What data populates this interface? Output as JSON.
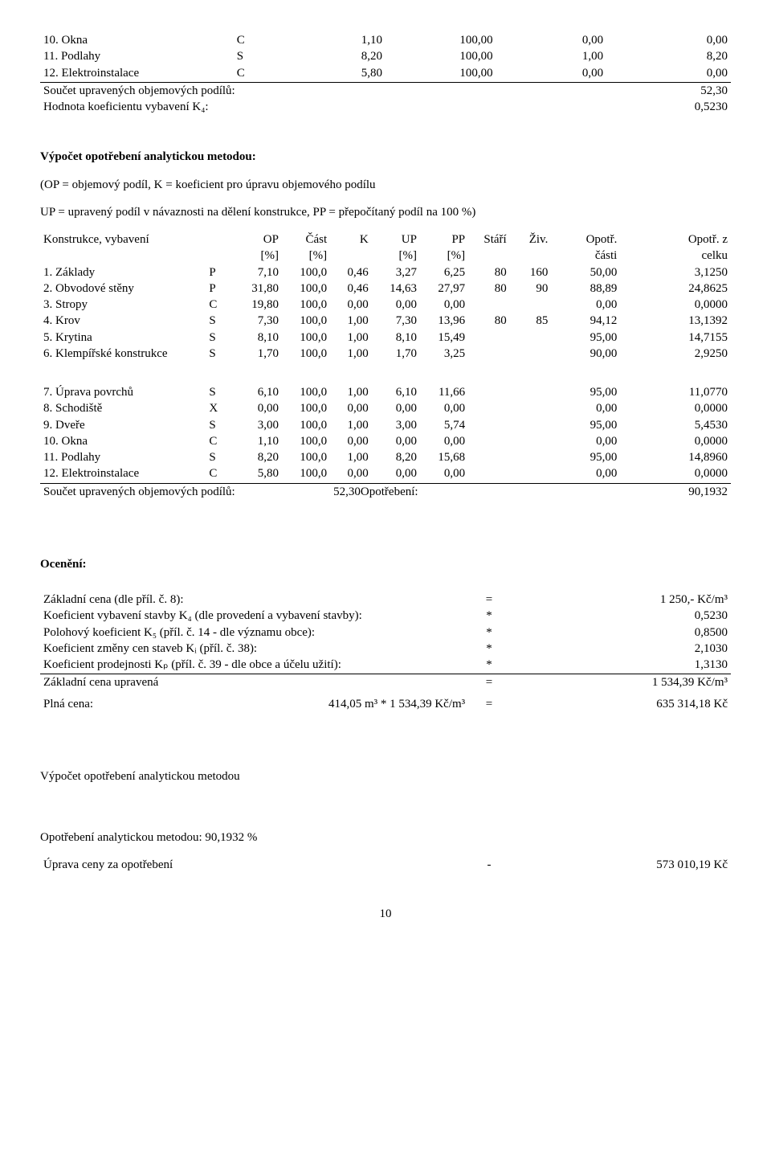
{
  "top_table": {
    "rows": [
      {
        "label": "10. Okna",
        "code": "C",
        "a": "1,10",
        "b": "100,00",
        "c": "0,00",
        "d": "0,00"
      },
      {
        "label": "11. Podlahy",
        "code": "S",
        "a": "8,20",
        "b": "100,00",
        "c": "1,00",
        "d": "8,20"
      },
      {
        "label": "12. Elektroinstalace",
        "code": "C",
        "a": "5,80",
        "b": "100,00",
        "c": "0,00",
        "d": "0,00"
      }
    ],
    "sum_label": "Součet upravených objemových podílů:",
    "sum_value": "52,30",
    "coef_label": "Hodnota koeficientu vybavení K₄:",
    "coef_value": "0,5230"
  },
  "calc_heading": "Výpočet opotřebení analytickou metodou:",
  "op_note": "(OP = objemový podíl, K = koeficient pro úpravu objemového podílu",
  "up_note": "UP = upravený podíl v návaznosti na dělení konstrukce, PP = přepočítaný podíl na 100 %)",
  "main_table": {
    "head1": [
      "Konstrukce, vybavení",
      "",
      "OP",
      "Část",
      "K",
      "UP",
      "PP",
      "Stáří",
      "Živ.",
      "Opotř.",
      "Opotř. z"
    ],
    "head2": [
      "",
      "",
      "[%]",
      "[%]",
      "",
      "[%]",
      "[%]",
      "",
      "",
      "části",
      "celku"
    ],
    "rows1": [
      {
        "label": "1. Základy",
        "code": "P",
        "a": "7,10",
        "b": "100,0",
        "c": "0,46",
        "d": "3,27",
        "e": "6,25",
        "f": "80",
        "g": "160",
        "h": "50,00",
        "i": "3,1250"
      },
      {
        "label": "2. Obvodové stěny",
        "code": "P",
        "a": "31,80",
        "b": "100,0",
        "c": "0,46",
        "d": "14,63",
        "e": "27,97",
        "f": "80",
        "g": "90",
        "h": "88,89",
        "i": "24,8625"
      },
      {
        "label": "3. Stropy",
        "code": "C",
        "a": "19,80",
        "b": "100,0",
        "c": "0,00",
        "d": "0,00",
        "e": "0,00",
        "f": "",
        "g": "",
        "h": "0,00",
        "i": "0,0000"
      },
      {
        "label": "4. Krov",
        "code": "S",
        "a": "7,30",
        "b": "100,0",
        "c": "1,00",
        "d": "7,30",
        "e": "13,96",
        "f": "80",
        "g": "85",
        "h": "94,12",
        "i": "13,1392"
      },
      {
        "label": "5. Krytina",
        "code": "S",
        "a": "8,10",
        "b": "100,0",
        "c": "1,00",
        "d": "8,10",
        "e": "15,49",
        "f": "",
        "g": "",
        "h": "95,00",
        "i": "14,7155"
      },
      {
        "label": "6. Klempířské konstrukce",
        "code": "S",
        "a": "1,70",
        "b": "100,0",
        "c": "1,00",
        "d": "1,70",
        "e": "3,25",
        "f": "",
        "g": "",
        "h": "90,00",
        "i": "2,9250"
      }
    ],
    "rows2": [
      {
        "label": "7. Úprava povrchů",
        "code": "S",
        "a": "6,10",
        "b": "100,0",
        "c": "1,00",
        "d": "6,10",
        "e": "11,66",
        "f": "",
        "g": "",
        "h": "95,00",
        "i": "11,0770"
      },
      {
        "label": "8. Schodiště",
        "code": "X",
        "a": "0,00",
        "b": "100,0",
        "c": "0,00",
        "d": "0,00",
        "e": "0,00",
        "f": "",
        "g": "",
        "h": "0,00",
        "i": "0,0000"
      },
      {
        "label": "9. Dveře",
        "code": "S",
        "a": "3,00",
        "b": "100,0",
        "c": "1,00",
        "d": "3,00",
        "e": "5,74",
        "f": "",
        "g": "",
        "h": "95,00",
        "i": "5,4530"
      },
      {
        "label": "10. Okna",
        "code": "C",
        "a": "1,10",
        "b": "100,0",
        "c": "0,00",
        "d": "0,00",
        "e": "0,00",
        "f": "",
        "g": "",
        "h": "0,00",
        "i": "0,0000"
      },
      {
        "label": "11. Podlahy",
        "code": "S",
        "a": "8,20",
        "b": "100,0",
        "c": "1,00",
        "d": "8,20",
        "e": "15,68",
        "f": "",
        "g": "",
        "h": "95,00",
        "i": "14,8960"
      },
      {
        "label": "12. Elektroinstalace",
        "code": "C",
        "a": "5,80",
        "b": "100,0",
        "c": "0,00",
        "d": "0,00",
        "e": "0,00",
        "f": "",
        "g": "",
        "h": "0,00",
        "i": "0,0000"
      }
    ],
    "sum_label": "Součet upravených objemových podílů:",
    "sum_mid": "52,30",
    "sum_op_label": "Opotřebení:",
    "sum_op_value": "90,1932"
  },
  "ocen_heading": "Ocenění:",
  "ocen_rows": [
    {
      "label": "Základní cena (dle příl. č. 8):",
      "op": "=",
      "val": "1 250,- Kč/m³"
    },
    {
      "label": "Koeficient vybavení stavby K₄ (dle provedení a vybavení stavby):",
      "op": "*",
      "val": "0,5230"
    },
    {
      "label": "Polohový koeficient K₅ (příl. č. 14 - dle významu obce):",
      "op": "*",
      "val": "0,8500"
    },
    {
      "label": "Koeficient změny cen staveb Kᵢ (příl. č. 38):",
      "op": "*",
      "val": "2,1030"
    },
    {
      "label": "Koeficient prodejnosti Kₚ (příl. č. 39 - dle obce a účelu užití):",
      "op": "*",
      "val": "1,3130"
    }
  ],
  "zcu": {
    "label": "Základní cena upravená",
    "op": "=",
    "val": "1 534,39 Kč/m³"
  },
  "plna": {
    "label": "Plná cena:",
    "mid": "414,05 m³ * 1 534,39 Kč/m³",
    "op": "=",
    "val": "635 314,18 Kč"
  },
  "bottom_heading": "Výpočet opotřebení analytickou metodou",
  "bottom_line1": "Opotřebení analytickou metodou: 90,1932 %",
  "bottom_line2_label": "Úprava ceny za opotřebení",
  "bottom_line2_op": "-",
  "bottom_line2_val": "573 010,19 Kč",
  "page_number": "10"
}
